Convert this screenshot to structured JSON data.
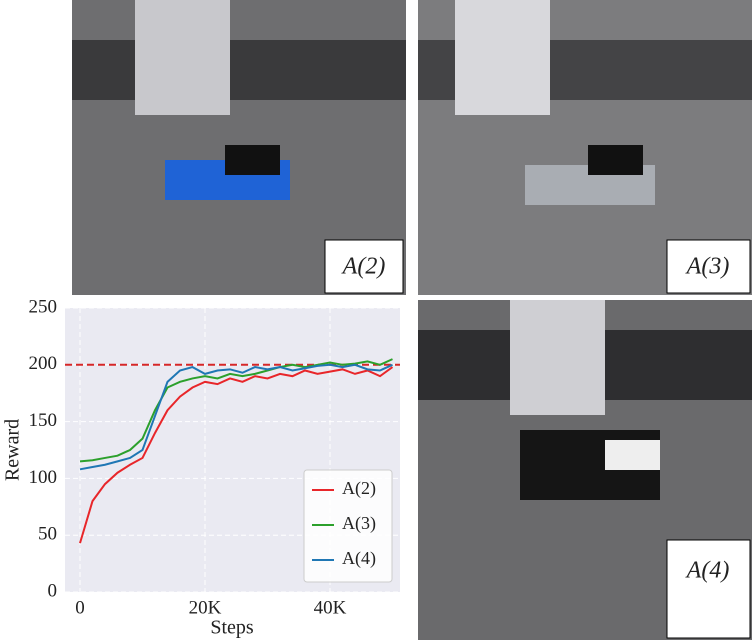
{
  "chart_data": {
    "type": "line",
    "x": [
      0,
      2000,
      4000,
      6000,
      8000,
      10000,
      12000,
      14000,
      16000,
      18000,
      20000,
      22000,
      24000,
      26000,
      28000,
      30000,
      32000,
      34000,
      36000,
      38000,
      40000,
      42000,
      44000,
      46000,
      48000,
      50000
    ],
    "series": [
      {
        "name": "A(2)",
        "color": "#e8262a",
        "values": [
          43,
          80,
          95,
          105,
          112,
          118,
          140,
          160,
          172,
          180,
          185,
          183,
          188,
          185,
          190,
          188,
          192,
          190,
          195,
          192,
          194,
          196,
          192,
          195,
          190,
          198
        ]
      },
      {
        "name": "A(3)",
        "color": "#2ca02c",
        "values": [
          115,
          116,
          118,
          120,
          125,
          135,
          160,
          180,
          185,
          188,
          190,
          188,
          192,
          190,
          192,
          195,
          198,
          200,
          198,
          200,
          202,
          200,
          201,
          203,
          200,
          205
        ]
      },
      {
        "name": "A(4)",
        "color": "#1f77b4",
        "values": [
          108,
          110,
          112,
          115,
          118,
          125,
          155,
          185,
          195,
          198,
          192,
          195,
          196,
          193,
          198,
          196,
          198,
          195,
          197,
          199,
          200,
          198,
          200,
          196,
          195,
          200
        ]
      }
    ],
    "xlabel": "Steps",
    "ylabel": "Reward",
    "xlim": [
      -2400,
      51200
    ],
    "xticks": [
      0,
      {
        "value": 20000,
        "label": "20K"
      },
      {
        "value": 40000,
        "label": "40K"
      }
    ],
    "ylim": [
      0,
      250
    ],
    "yticks": [
      0,
      50,
      100,
      150,
      200,
      250
    ],
    "reference_line": 200,
    "reference_color": "#d62728",
    "grid": true,
    "legend": "lower right"
  },
  "panels": [
    {
      "label": "A(2)"
    },
    {
      "label": "A(3)"
    },
    {
      "label": "A(4)"
    }
  ]
}
